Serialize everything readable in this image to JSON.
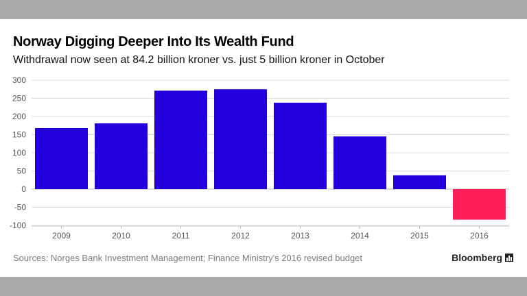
{
  "header": {
    "title": "Norway Digging Deeper Into Its Wealth Fund",
    "subtitle": "Withdrawal now seen at 84.2 billion kroner vs. just 5 billion kroner in October"
  },
  "footer": {
    "source": "Sources: Norges Bank Investment Management; Finance Ministry's 2016 revised budget",
    "brand": "Bloomberg"
  },
  "colors": {
    "positive_bar": "#2200dd",
    "negative_bar": "#ff1f5a",
    "grid": "#dddddd",
    "axis_text": "#555555"
  },
  "icons": {
    "brand_icon": "bar-chart-icon"
  },
  "chart_data": {
    "type": "bar",
    "title": "Norway Digging Deeper Into Its Wealth Fund",
    "subtitle": "Withdrawal now seen at 84.2 billion kroner vs. just 5 billion kroner in October",
    "xlabel": "",
    "ylabel": "",
    "categories": [
      "2009",
      "2010",
      "2011",
      "2012",
      "2013",
      "2014",
      "2015",
      "2016"
    ],
    "values": [
      168,
      181,
      271,
      275,
      238,
      145,
      38,
      -84.2
    ],
    "ylim": [
      -100,
      300
    ],
    "yticks": [
      300,
      250,
      200,
      150,
      100,
      50,
      0,
      -50,
      -100
    ],
    "grid": true,
    "legend": "none"
  }
}
